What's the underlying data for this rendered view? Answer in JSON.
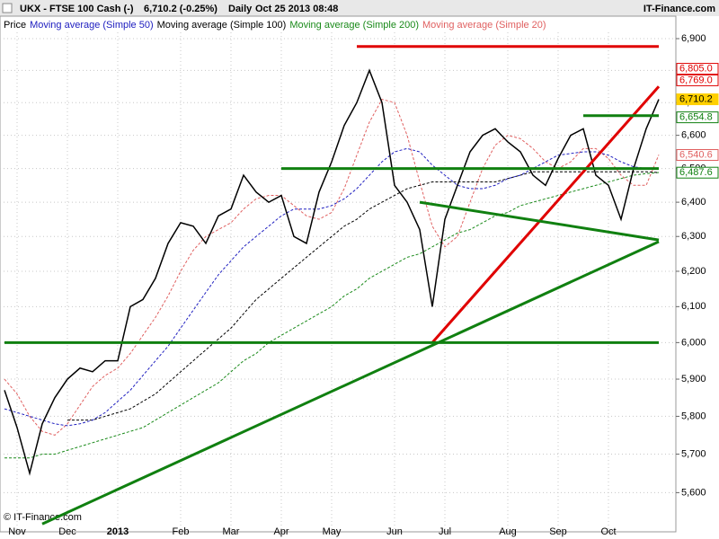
{
  "chart_data": {
    "type": "line",
    "header": {
      "symbol": "UKX - FTSE 100 Cash (-)",
      "quote": "6,710.2 (-0.25%)",
      "period": "Daily",
      "timestamp": "Oct 25 2013 08:48",
      "brand": "IT-Finance.com"
    },
    "footer": "© IT-Finance.com",
    "log_scale": true,
    "grid": true,
    "ylim": [
      5500,
      6920
    ],
    "yticks": [
      {
        "value": 5600,
        "label": "5,600"
      },
      {
        "value": 5700,
        "label": "5,700"
      },
      {
        "value": 5800,
        "label": "5,800"
      },
      {
        "value": 5900,
        "label": "5,900"
      },
      {
        "value": 6000,
        "label": "6,000"
      },
      {
        "value": 6100,
        "label": "6,100"
      },
      {
        "value": 6200,
        "label": "6,200"
      },
      {
        "value": 6300,
        "label": "6,300"
      },
      {
        "value": 6400,
        "label": "6,400"
      },
      {
        "value": 6500,
        "label": "6,500"
      },
      {
        "value": 6600,
        "label": "6,600"
      },
      {
        "value": 6700,
        "label": "6,700"
      },
      {
        "value": 6800,
        "label": "6,800"
      },
      {
        "value": 6900,
        "label": "6,900"
      }
    ],
    "categories": [
      null,
      "Nov",
      null,
      null,
      null,
      "Dec",
      null,
      null,
      null,
      "2013",
      null,
      null,
      null,
      null,
      "Feb",
      null,
      null,
      null,
      "Mar",
      null,
      null,
      null,
      "Apr",
      null,
      null,
      null,
      "May",
      null,
      null,
      null,
      null,
      "Jun",
      null,
      null,
      null,
      "Jul",
      null,
      null,
      null,
      null,
      "Aug",
      null,
      null,
      null,
      "Sep",
      null,
      null,
      null,
      "Oct",
      null,
      null,
      null,
      null
    ],
    "series": [
      {
        "name": "Price",
        "color": "#000000",
        "style": "solid",
        "values": [
          5870,
          5770,
          5650,
          5780,
          5850,
          5900,
          5930,
          5920,
          5950,
          5950,
          6100,
          6120,
          6180,
          6280,
          6340,
          6330,
          6280,
          6360,
          6380,
          6480,
          6430,
          6400,
          6420,
          6300,
          6280,
          6430,
          6520,
          6630,
          6700,
          6800,
          6700,
          6450,
          6400,
          6320,
          6100,
          6350,
          6450,
          6550,
          6600,
          6620,
          6580,
          6550,
          6480,
          6450,
          6530,
          6600,
          6620,
          6480,
          6450,
          6350,
          6500,
          6620,
          6710.2
        ]
      },
      {
        "name": "Moving average (Simple 50)",
        "color": "#2020c0",
        "style": "dashed",
        "values": [
          5820,
          5810,
          5800,
          5790,
          5780,
          5775,
          5780,
          5790,
          5810,
          5840,
          5870,
          5910,
          5950,
          5990,
          6040,
          6090,
          6140,
          6190,
          6230,
          6270,
          6300,
          6330,
          6360,
          6380,
          6380,
          6380,
          6390,
          6410,
          6440,
          6480,
          6520,
          6550,
          6560,
          6550,
          6510,
          6480,
          6450,
          6440,
          6440,
          6450,
          6470,
          6480,
          6500,
          6520,
          6540,
          6545,
          6550,
          6550,
          6540,
          6520,
          6505,
          6500,
          6500
        ]
      },
      {
        "name": "Moving average (Simple 100)",
        "color": "#000000",
        "style": "dashed",
        "values": [
          null,
          null,
          null,
          null,
          null,
          5790,
          5790,
          5790,
          5800,
          5810,
          5820,
          5840,
          5860,
          5890,
          5920,
          5950,
          5980,
          6010,
          6040,
          6080,
          6120,
          6150,
          6180,
          6210,
          6240,
          6270,
          6300,
          6330,
          6350,
          6380,
          6400,
          6420,
          6440,
          6450,
          6460,
          6460,
          6460,
          6460,
          6460,
          6460,
          6470,
          6480,
          6490,
          6490,
          6490,
          6490,
          6490,
          6490,
          6490,
          6490,
          6490,
          6490,
          6488
        ]
      },
      {
        "name": "Moving average (Simple 200)",
        "color": "#1a8a1a",
        "style": "dashed",
        "values": [
          5690,
          5690,
          5690,
          5700,
          5700,
          5710,
          5720,
          5730,
          5740,
          5750,
          5760,
          5770,
          5790,
          5810,
          5830,
          5850,
          5870,
          5890,
          5920,
          5950,
          5970,
          6000,
          6020,
          6040,
          6060,
          6080,
          6100,
          6130,
          6150,
          6180,
          6200,
          6220,
          6240,
          6250,
          6270,
          6290,
          6310,
          6320,
          6340,
          6360,
          6370,
          6390,
          6400,
          6410,
          6420,
          6430,
          6440,
          6450,
          6460,
          6470,
          6480,
          6485,
          6488
        ]
      },
      {
        "name": "Moving average (Simple 20)",
        "color": "#e06060",
        "style": "dashed",
        "values": [
          5900,
          5860,
          5800,
          5760,
          5750,
          5780,
          5830,
          5880,
          5910,
          5930,
          5970,
          6020,
          6070,
          6130,
          6200,
          6260,
          6300,
          6320,
          6340,
          6380,
          6410,
          6420,
          6420,
          6390,
          6360,
          6350,
          6370,
          6440,
          6540,
          6640,
          6710,
          6700,
          6600,
          6460,
          6330,
          6270,
          6300,
          6400,
          6500,
          6570,
          6600,
          6590,
          6560,
          6520,
          6500,
          6520,
          6560,
          6560,
          6530,
          6480,
          6450,
          6450,
          6541
        ]
      }
    ],
    "trendlines": [
      {
        "color": "#e00000",
        "x": [
          28,
          52
        ],
        "y": [
          6875,
          6875
        ]
      },
      {
        "color": "#e00000",
        "x": [
          34,
          52
        ],
        "y": [
          6000,
          6750
        ]
      },
      {
        "color": "#108010",
        "x": [
          0,
          52
        ],
        "y": [
          6000,
          6000
        ]
      },
      {
        "color": "#108010",
        "x": [
          22,
          52
        ],
        "y": [
          6500,
          6500
        ]
      },
      {
        "color": "#108010",
        "x": [
          3,
          52
        ],
        "y": [
          5520,
          6285
        ]
      },
      {
        "color": "#108010",
        "x": [
          33,
          52
        ],
        "y": [
          6400,
          6290
        ]
      },
      {
        "color": "#108010",
        "x": [
          46,
          52
        ],
        "y": [
          6660,
          6660
        ]
      }
    ],
    "price_labels": [
      {
        "value": 6805.0,
        "label": "6,805.0",
        "color": "#e00000"
      },
      {
        "value": 6769.0,
        "label": "6,769.0",
        "color": "#e00000"
      },
      {
        "value": 6710.2,
        "label": "6,710.2",
        "color": "#ffd000"
      },
      {
        "value": 6654.8,
        "label": "6,654.8",
        "color": "#108010"
      },
      {
        "value": 6540.6,
        "label": "6,540.6",
        "color": "#e06060"
      },
      {
        "value": 6487.6,
        "label": "6,487.6",
        "color": "#108010"
      }
    ]
  }
}
